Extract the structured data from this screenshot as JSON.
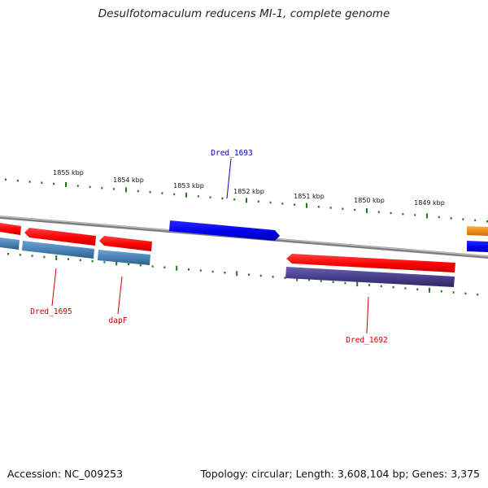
{
  "title": "Desulfotomaculum reducens MI-1, complete genome",
  "footer": {
    "accession": "Accession: NC_009253",
    "summary": "Topology: circular; Length: 3,608,104 bp; Genes: 3,375"
  },
  "colors": {
    "backbone": "#8a8a8a",
    "tick": "#1f7a1f",
    "cds_forward": "#ff0000",
    "cds_reverse": "#0000ee",
    "cog_steelblue": "#4682b4",
    "cog_darkslate": "#483d8b",
    "cog_orange": "#ff8c00",
    "label_forward": "#cc0000",
    "label_reverse": "#0000cc"
  },
  "ticks": {
    "upper_labels": [
      "1855 kbp",
      "1854 kbp",
      "1853 kbp",
      "1852 kbp",
      "1851 kbp",
      "1850 kbp",
      "1849 kbp"
    ]
  },
  "genes": [
    {
      "name": "Dred_1693",
      "strand": "reverse"
    },
    {
      "name": "Dred_1695",
      "strand": "forward"
    },
    {
      "name": "dapF",
      "strand": "forward"
    },
    {
      "name": "Dred_1692",
      "strand": "forward"
    }
  ]
}
